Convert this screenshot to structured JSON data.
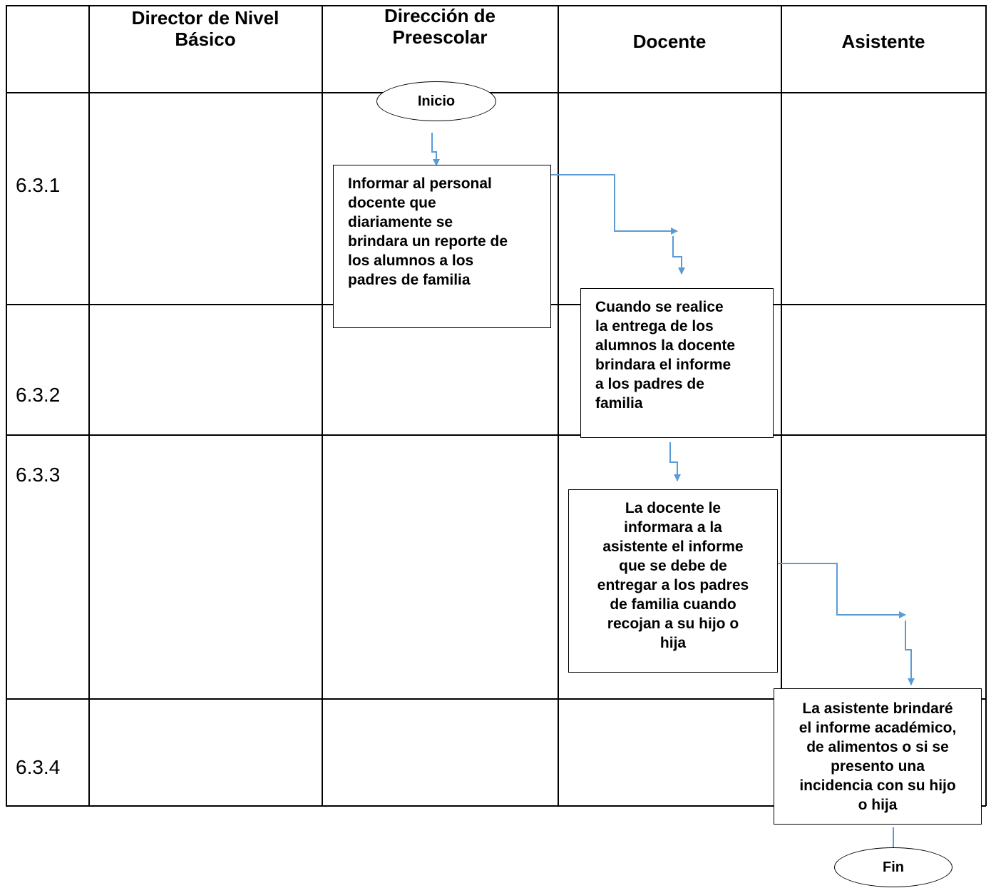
{
  "headers": {
    "col1": "Director de Nivel\nBásico",
    "col2": "Dirección de\nPreescolar",
    "col3": "Docente",
    "col4": "Asistente"
  },
  "rows": [
    "6.3.1",
    "6.3.2",
    "6.3.3",
    "6.3.4"
  ],
  "terminals": {
    "start": "Inicio",
    "end": "Fin"
  },
  "steps": [
    "Informar al personal\ndocente que\ndiariamente se\nbrindara un reporte de\nlos alumnos a los\npadres de familia",
    "Cuando se realice\nla entrega de los\nalumnos la docente\nbrindara el informe\na los padres de\nfamilia",
    "La docente le\ninformara a la\nasistente el informe\nque se debe de\nentregar a los padres\nde familia cuando\nrecojan a su hijo o\nhija",
    "La asistente brindaré\nel informe académico,\nde alimentos o si se\npresento una\nincidencia con su hijo\no hija"
  ],
  "colors": {
    "connector": "#5b9bd5",
    "grid": "#000000"
  }
}
